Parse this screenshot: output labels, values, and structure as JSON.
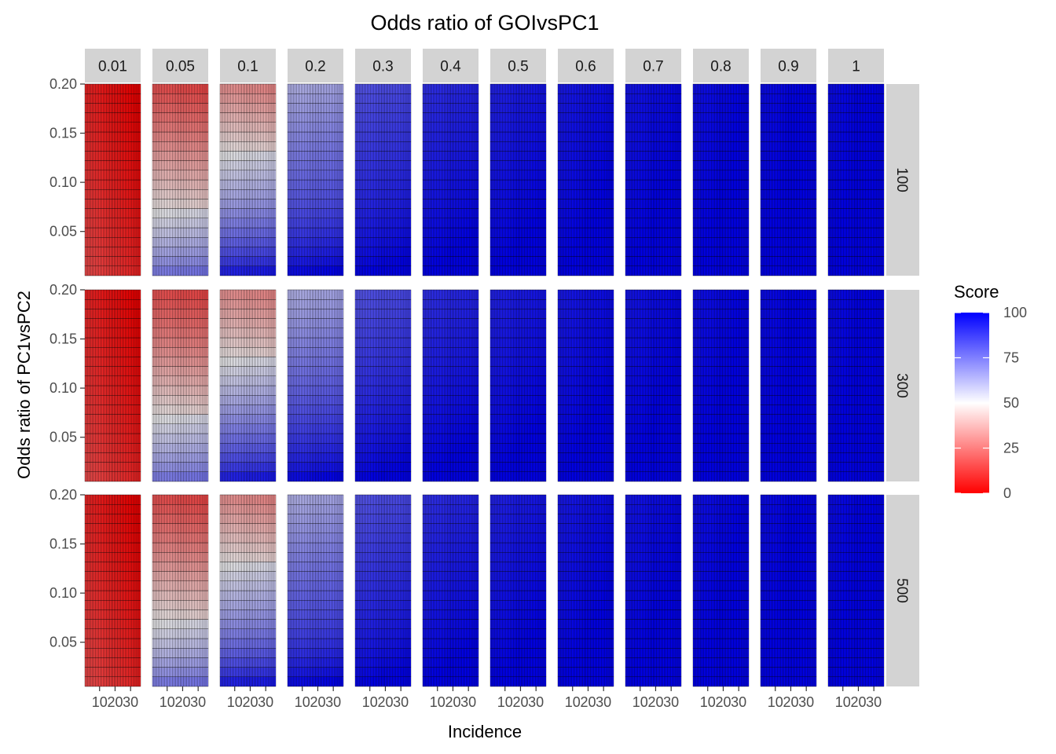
{
  "chart_data": {
    "type": "heatmap",
    "title": "Odds ratio of GOIvsPC1",
    "xlabel": "Incidence",
    "ylabel": "Odds ratio of PC1vsPC2",
    "column_facets": [
      "0.01",
      "0.05",
      "0.1",
      "0.2",
      "0.3",
      "0.4",
      "0.5",
      "0.6",
      "0.7",
      "0.8",
      "0.9",
      "1"
    ],
    "row_facets": [
      "100",
      "300",
      "500"
    ],
    "x_ticks": [
      "10",
      "20",
      "30"
    ],
    "x_range": [
      1,
      36
    ],
    "y_ticks": [
      "0.05",
      "0.10",
      "0.15",
      "0.20"
    ],
    "y_tick_values": [
      0.05,
      0.1,
      0.15,
      0.2
    ],
    "y_range": [
      0.005,
      0.2
    ],
    "y_levels": [
      0.01,
      0.02,
      0.03,
      0.04,
      0.05,
      0.06,
      0.07,
      0.08,
      0.09,
      0.1,
      0.11,
      0.12,
      0.13,
      0.14,
      0.15,
      0.16,
      0.17,
      0.18,
      0.19,
      0.2
    ],
    "legend": {
      "title": "Score",
      "position": "right",
      "breaks": [
        "0",
        "25",
        "50",
        "75",
        "100"
      ],
      "low_color": "#ff0000",
      "mid_color": "#ffffff",
      "high_color": "#0000ff",
      "range": [
        0,
        100
      ]
    },
    "strip_color": "#d3d3d3",
    "cell_border_color": "#000000",
    "approx_score_by_column_facet": {
      "0.01": {
        "ylow": 10,
        "yhigh": 2,
        "xlow_add": 6
      },
      "0.05": {
        "ylow": 72,
        "yhigh": 18,
        "xlow_add": 0
      },
      "0.1": {
        "ylow": 92,
        "yhigh": 32,
        "xlow_add": 0
      },
      "0.2": {
        "ylow": 97,
        "yhigh": 62,
        "xlow_add": 0
      },
      "0.3": {
        "ylow": 99,
        "yhigh": 82,
        "xlow_add": 0
      },
      "0.4": {
        "ylow": 100,
        "yhigh": 90,
        "xlow_add": 0
      },
      "0.5": {
        "ylow": 100,
        "yhigh": 93,
        "xlow_add": 0
      },
      "0.6": {
        "ylow": 100,
        "yhigh": 95,
        "xlow_add": 0
      },
      "0.7": {
        "ylow": 100,
        "yhigh": 96,
        "xlow_add": 0
      },
      "0.8": {
        "ylow": 100,
        "yhigh": 97,
        "xlow_add": 0
      },
      "0.9": {
        "ylow": 100,
        "yhigh": 98,
        "xlow_add": 0
      },
      "1": {
        "ylow": 100,
        "yhigh": 98,
        "xlow_add": 0
      }
    }
  }
}
